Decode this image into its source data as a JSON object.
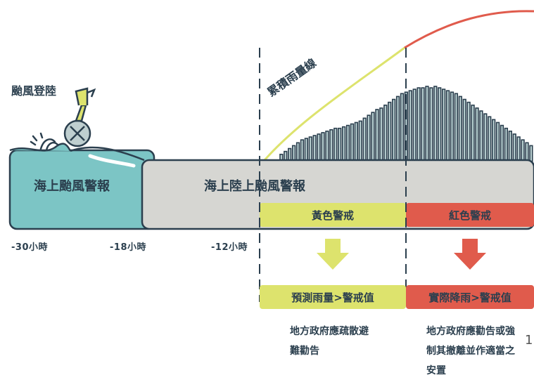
{
  "title": "颱風登陸",
  "curve_label": "累積雨量線",
  "zones": {
    "sea": "海上颱風警報",
    "sea_land": "海上陸上颱風警報"
  },
  "alerts": {
    "yellow": "黃色警戒",
    "red": "紅色警戒"
  },
  "conditions": {
    "yellow": "預測雨量>警戒值",
    "red": "實際降雨>警戒值"
  },
  "actions": {
    "yellow": "地方政府應疏散避難勸告",
    "red": "地方政府應勸告或強制其撤離並作適當之安置"
  },
  "timeline": {
    "t30": "-30小時",
    "t18": "-18小時",
    "t12": "-12小時"
  },
  "page_number": "1",
  "colors": {
    "teal": "#7cc5c5",
    "gray": "#d6d6d2",
    "yellow": "#dde36d",
    "red": "#e05b4c",
    "dark": "#2b3f4e",
    "bars": "#bfd5d6"
  },
  "rainfall_bars": [
    4,
    6,
    8,
    10,
    12,
    14,
    15,
    16,
    17,
    18,
    19,
    20,
    21,
    22,
    22,
    23,
    24,
    25,
    26,
    27,
    29,
    31,
    33,
    35,
    36,
    38,
    40,
    42,
    44,
    46,
    47,
    48,
    49,
    50,
    50,
    51,
    50,
    51,
    50,
    49,
    48,
    47,
    46,
    44,
    42,
    40,
    38,
    36,
    34,
    32,
    30,
    28,
    26,
    24,
    22,
    20,
    18,
    16,
    14,
    12,
    10
  ]
}
